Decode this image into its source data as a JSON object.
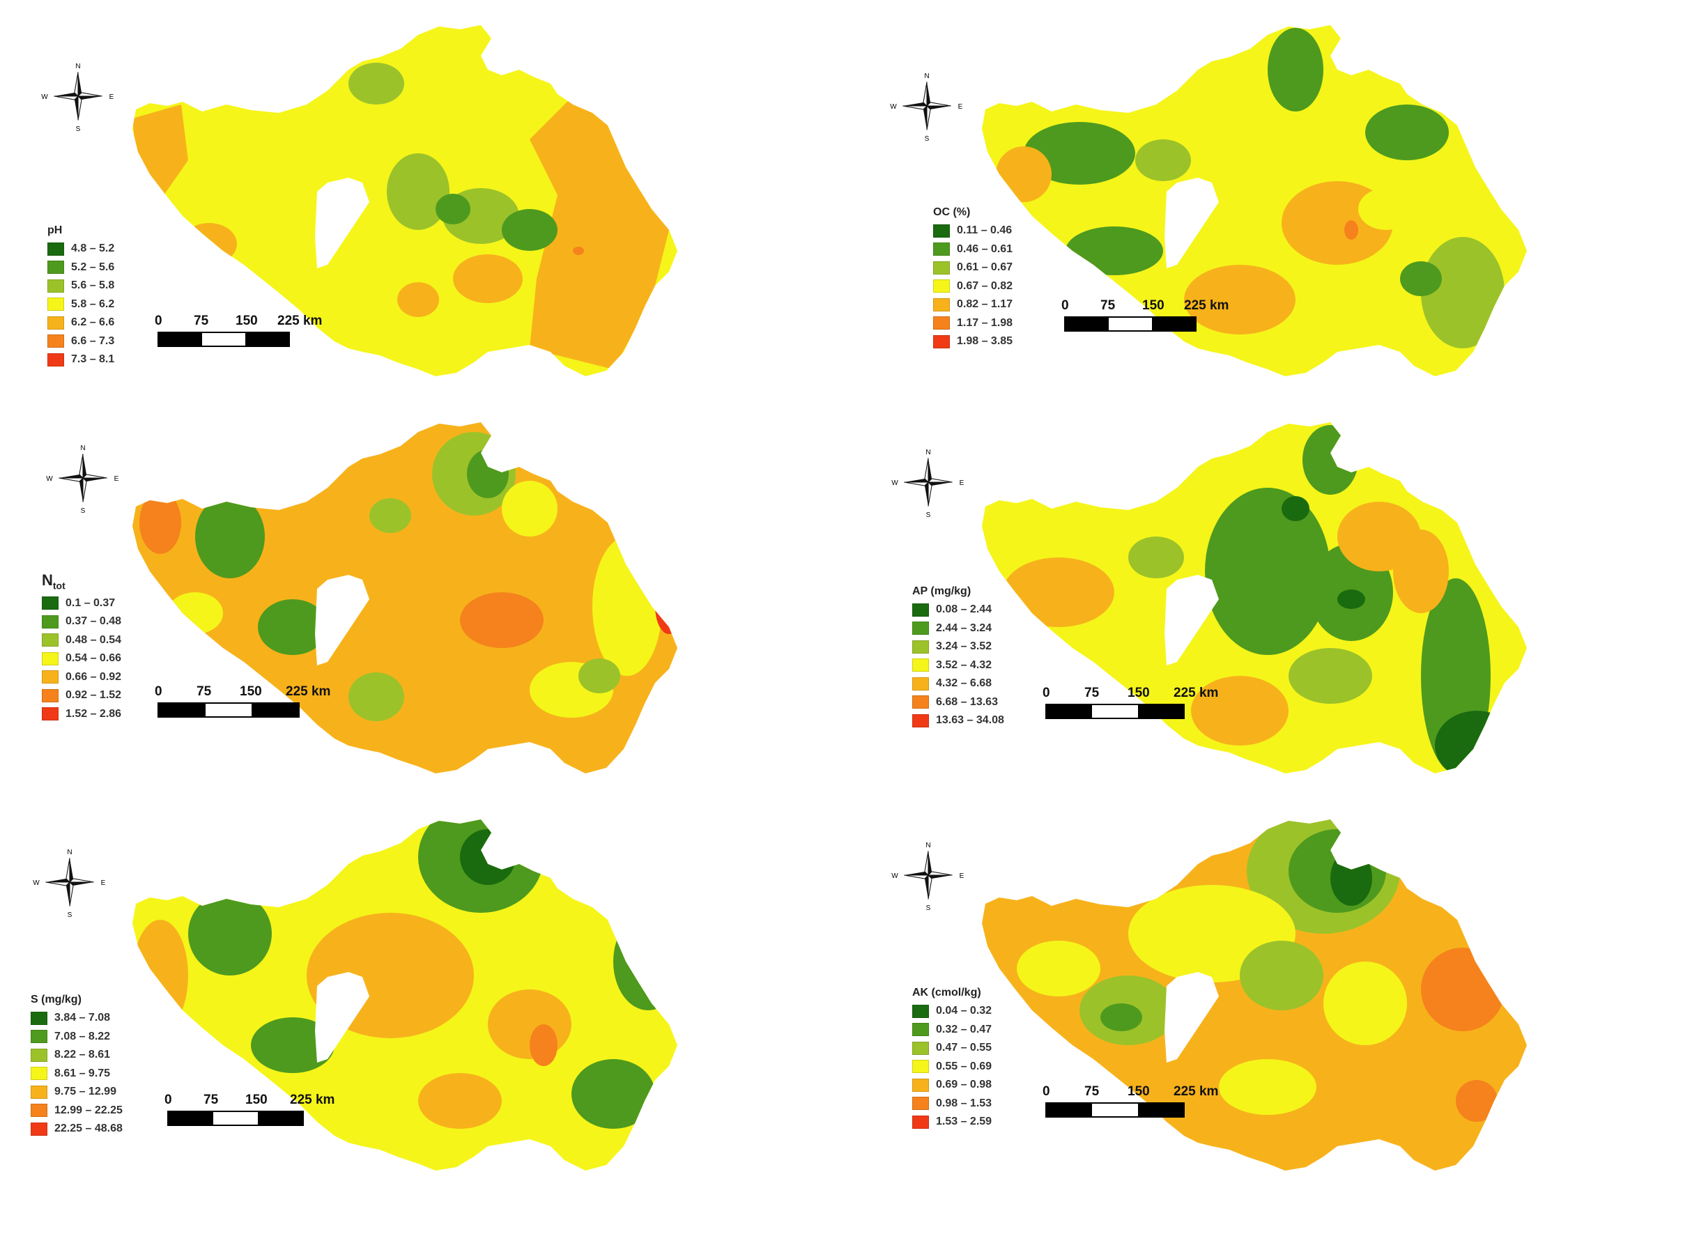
{
  "compass": {
    "n": "N",
    "s": "S",
    "e": "E",
    "w": "W"
  },
  "scale": {
    "labels": [
      "0",
      "75",
      "150",
      "225 km"
    ]
  },
  "palette": [
    "#1a6b0f",
    "#4e9a1e",
    "#9cc22a",
    "#f5f51a",
    "#f7b21b",
    "#f5821c",
    "#f03a16"
  ],
  "panels": [
    {
      "id": "ph",
      "legend_title": "pH",
      "classes": [
        "4.8 – 5.2",
        "5.2 – 5.6",
        "5.6 – 5.8",
        "5.8 – 6.2",
        "6.2 – 6.6",
        "6.6 – 7.3",
        "7.3 – 8.1"
      ]
    },
    {
      "id": "oc",
      "legend_title": "OC (%)",
      "classes": [
        "0.11 – 0.46",
        "0.46 – 0.61",
        "0.61 – 0.67",
        "0.67 – 0.82",
        "0.82 – 1.17",
        "1.17 – 1.98",
        "1.98 – 3.85"
      ]
    },
    {
      "id": "ntot",
      "legend_title": "N",
      "legend_title_sub": "tot",
      "classes": [
        "0.1 – 0.37",
        "0.37 – 0.48",
        "0.48 – 0.54",
        "0.54 – 0.66",
        "0.66 – 0.92",
        "0.92 – 1.52",
        "1.52 – 2.86"
      ]
    },
    {
      "id": "ap",
      "legend_title": "AP (mg/kg)",
      "classes": [
        "0.08 – 2.44",
        "2.44 – 3.24",
        "3.24 – 3.52",
        "3.52 – 4.32",
        "4.32 – 6.68",
        "6.68 – 13.63",
        "13.63 – 34.08"
      ]
    },
    {
      "id": "s",
      "legend_title": "S (mg/kg)",
      "classes": [
        "3.84 – 7.08",
        "7.08 – 8.22",
        "8.22 – 8.61",
        "8.61 – 9.75",
        "9.75 – 12.99",
        "12.99 – 22.25",
        "22.25 – 48.68"
      ]
    },
    {
      "id": "ak",
      "legend_title": "AK (cmol/kg)",
      "classes": [
        "0.04 – 0.32",
        "0.32 – 0.47",
        "0.47 – 0.55",
        "0.55 – 0.69",
        "0.69 – 0.98",
        "0.98 – 1.53",
        "1.53 – 2.59"
      ]
    }
  ]
}
